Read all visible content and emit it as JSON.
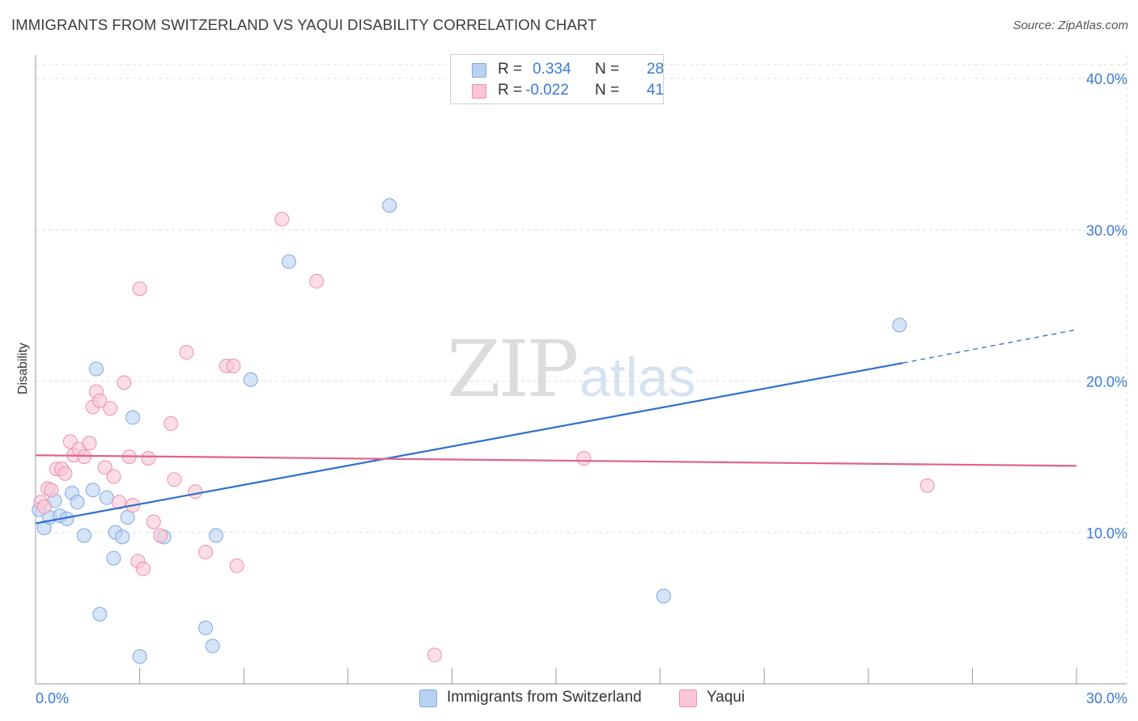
{
  "header": {
    "title": "IMMIGRANTS FROM SWITZERLAND VS YAQUI DISABILITY CORRELATION CHART",
    "source": "Source: ZipAtlas.com"
  },
  "watermark": {
    "zip": "ZIP",
    "atlas": "atlas"
  },
  "legend": {
    "rows": [
      {
        "r_label": "R =",
        "r_value": "0.334",
        "n_label": "N =",
        "n_value": "28"
      },
      {
        "r_label": "R =",
        "r_value": "-0.022",
        "n_label": "N =",
        "n_value": "41"
      }
    ]
  },
  "colors": {
    "blue_fill": "#b9d2f2",
    "blue_stroke": "#7ea9e1",
    "blue_line": "#2f6fcf",
    "pink_fill": "#f9c6d6",
    "pink_stroke": "#ee8fae",
    "pink_line": "#e0628f",
    "tick_text": "#3a7bd5",
    "grid": "#dddddd"
  },
  "chart_data": {
    "type": "scatter",
    "title": "IMMIGRANTS FROM SWITZERLAND VS YAQUI DISABILITY CORRELATION CHART",
    "xlabel": "",
    "ylabel": "Disability",
    "xlim": [
      0,
      30
    ],
    "ylim": [
      0,
      40
    ],
    "x_ticks": [
      0,
      30
    ],
    "x_tick_labels": [
      "0.0%",
      "30.0%"
    ],
    "y_ticks": [
      10,
      20,
      30,
      40
    ],
    "y_tick_labels": [
      "10.0%",
      "20.0%",
      "30.0%",
      "40.0%"
    ],
    "grid": true,
    "legend_position": "top-center",
    "series": [
      {
        "name": "Immigrants from Switzerland",
        "color": "#7ea9e1",
        "r": 0.334,
        "n": 28,
        "trend": {
          "x": [
            0,
            25
          ],
          "y": [
            10.6,
            21.2
          ],
          "dashed_to_x": 30,
          "dashed_to_y": 23.4
        },
        "points": [
          [
            0.1,
            11.5
          ],
          [
            0.25,
            10.3
          ],
          [
            0.4,
            11.0
          ],
          [
            0.55,
            12.1
          ],
          [
            0.7,
            11.1
          ],
          [
            0.9,
            10.9
          ],
          [
            1.05,
            12.6
          ],
          [
            1.2,
            12.0
          ],
          [
            1.4,
            9.8
          ],
          [
            1.65,
            12.8
          ],
          [
            1.75,
            20.8
          ],
          [
            1.85,
            4.6
          ],
          [
            2.05,
            12.3
          ],
          [
            2.25,
            8.3
          ],
          [
            2.3,
            10.0
          ],
          [
            2.5,
            9.7
          ],
          [
            2.65,
            11.0
          ],
          [
            2.8,
            17.6
          ],
          [
            3.0,
            1.8
          ],
          [
            3.7,
            9.7
          ],
          [
            4.9,
            3.7
          ],
          [
            5.1,
            2.5
          ],
          [
            5.2,
            9.8
          ],
          [
            6.2,
            20.1
          ],
          [
            7.3,
            27.9
          ],
          [
            10.2,
            31.6
          ],
          [
            18.1,
            5.8
          ],
          [
            24.9,
            23.7
          ]
        ]
      },
      {
        "name": "Yaqui",
        "color": "#ee8fae",
        "r": -0.022,
        "n": 41,
        "trend": {
          "x": [
            0,
            30
          ],
          "y": [
            15.1,
            14.4
          ]
        },
        "points": [
          [
            0.15,
            12.0
          ],
          [
            0.25,
            11.7
          ],
          [
            0.35,
            12.9
          ],
          [
            0.45,
            12.8
          ],
          [
            0.6,
            14.2
          ],
          [
            0.75,
            14.2
          ],
          [
            0.85,
            13.9
          ],
          [
            1.0,
            16.0
          ],
          [
            1.1,
            15.1
          ],
          [
            1.25,
            15.5
          ],
          [
            1.4,
            15.0
          ],
          [
            1.55,
            15.9
          ],
          [
            1.65,
            18.3
          ],
          [
            1.75,
            19.3
          ],
          [
            1.85,
            18.7
          ],
          [
            2.0,
            14.3
          ],
          [
            2.15,
            18.2
          ],
          [
            2.25,
            13.7
          ],
          [
            2.4,
            12.0
          ],
          [
            2.55,
            19.9
          ],
          [
            2.7,
            15.0
          ],
          [
            2.8,
            11.8
          ],
          [
            2.95,
            8.1
          ],
          [
            3.0,
            26.1
          ],
          [
            3.1,
            7.6
          ],
          [
            3.25,
            14.9
          ],
          [
            3.4,
            10.7
          ],
          [
            3.6,
            9.8
          ],
          [
            3.9,
            17.2
          ],
          [
            4.0,
            13.5
          ],
          [
            4.35,
            21.9
          ],
          [
            4.6,
            12.7
          ],
          [
            4.9,
            8.7
          ],
          [
            5.5,
            21.0
          ],
          [
            5.7,
            21.0
          ],
          [
            5.8,
            7.8
          ],
          [
            7.1,
            30.7
          ],
          [
            8.1,
            26.6
          ],
          [
            11.5,
            1.9
          ],
          [
            15.8,
            14.9
          ],
          [
            25.7,
            13.1
          ]
        ]
      }
    ]
  }
}
